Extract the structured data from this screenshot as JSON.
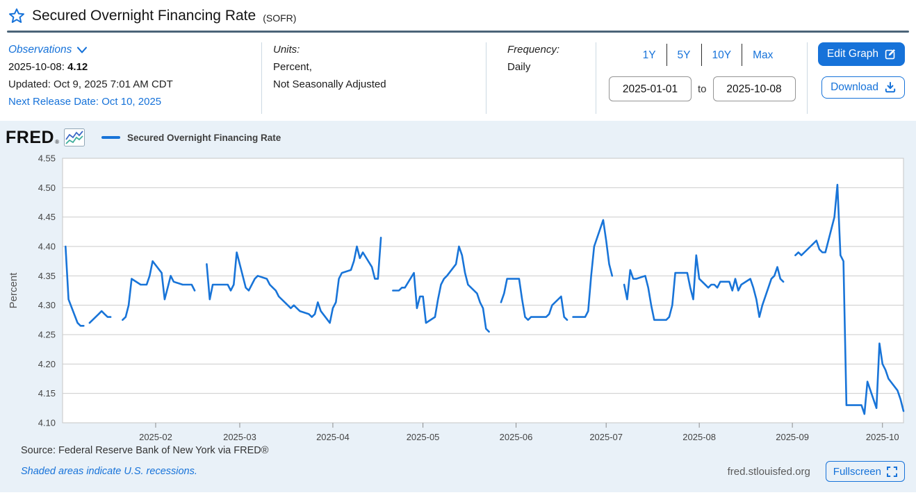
{
  "page": {
    "title": "Secured Overnight Financing Rate",
    "title_suffix": "(SOFR)"
  },
  "meta": {
    "observations_label": "Observations",
    "latest_date": "2025-10-08:",
    "latest_value": "4.12",
    "updated": "Updated: Oct 9, 2025 7:01 AM CDT",
    "next_release": "Next Release Date: Oct 10, 2025",
    "units_label": "Units:",
    "units_line1": "Percent,",
    "units_line2": "Not Seasonally Adjusted",
    "frequency_label": "Frequency:",
    "frequency_value": "Daily"
  },
  "range": {
    "buttons": [
      {
        "label": "1Y"
      },
      {
        "label": "5Y"
      },
      {
        "label": "10Y"
      },
      {
        "label": "Max"
      }
    ],
    "start_date": "2025-01-01",
    "to_label": "to",
    "end_date": "2025-10-08"
  },
  "actions": {
    "edit_graph": "Edit Graph",
    "download": "Download",
    "fullscreen": "Fullscreen"
  },
  "brand": {
    "logo": "FRED",
    "reg": "®"
  },
  "legend": {
    "series_label": "Secured Overnight Financing Rate"
  },
  "footer": {
    "source": "Source: Federal Reserve Bank of New York via FRED®",
    "note": "Shaded areas indicate U.S. recessions.",
    "domain": "fred.stlouisfed.org"
  },
  "colors": {
    "accent": "#1672d9",
    "line": "#1874d8",
    "chart_bg": "#e9f1f8",
    "grid": "#cbcbcb"
  },
  "chart_data": {
    "type": "line",
    "title": "Secured Overnight Financing Rate",
    "xlabel": "",
    "ylabel": "Percent",
    "ylim": [
      4.1,
      4.55
    ],
    "y_ticks": [
      4.1,
      4.15,
      4.2,
      4.25,
      4.3,
      4.35,
      4.4,
      4.45,
      4.5,
      4.55
    ],
    "x_range": [
      "2025-01-01",
      "2025-10-08"
    ],
    "x_ticks": [
      {
        "date": "2025-02-01",
        "label": "2025-02"
      },
      {
        "date": "2025-03-01",
        "label": "2025-03"
      },
      {
        "date": "2025-04-01",
        "label": "2025-04"
      },
      {
        "date": "2025-05-01",
        "label": "2025-05"
      },
      {
        "date": "2025-06-01",
        "label": "2025-06"
      },
      {
        "date": "2025-07-01",
        "label": "2025-07"
      },
      {
        "date": "2025-08-01",
        "label": "2025-08"
      },
      {
        "date": "2025-09-01",
        "label": "2025-09"
      },
      {
        "date": "2025-10-01",
        "label": "2025-10"
      }
    ],
    "grid": "horizontal",
    "legend_position": "top-left",
    "dates": [
      "2025-01-02",
      "2025-01-03",
      "2025-01-06",
      "2025-01-07",
      "2025-01-08",
      "2025-01-09",
      "2025-01-10",
      "2025-01-13",
      "2025-01-14",
      "2025-01-15",
      "2025-01-16",
      "2025-01-17",
      "2025-01-20",
      "2025-01-21",
      "2025-01-22",
      "2025-01-23",
      "2025-01-24",
      "2025-01-27",
      "2025-01-28",
      "2025-01-29",
      "2025-01-30",
      "2025-01-31",
      "2025-02-03",
      "2025-02-04",
      "2025-02-05",
      "2025-02-06",
      "2025-02-07",
      "2025-02-10",
      "2025-02-11",
      "2025-02-12",
      "2025-02-13",
      "2025-02-14",
      "2025-02-17",
      "2025-02-18",
      "2025-02-19",
      "2025-02-20",
      "2025-02-21",
      "2025-02-24",
      "2025-02-25",
      "2025-02-26",
      "2025-02-27",
      "2025-02-28",
      "2025-03-03",
      "2025-03-04",
      "2025-03-05",
      "2025-03-06",
      "2025-03-07",
      "2025-03-10",
      "2025-03-11",
      "2025-03-12",
      "2025-03-13",
      "2025-03-14",
      "2025-03-17",
      "2025-03-18",
      "2025-03-19",
      "2025-03-20",
      "2025-03-21",
      "2025-03-24",
      "2025-03-25",
      "2025-03-26",
      "2025-03-27",
      "2025-03-28",
      "2025-03-31",
      "2025-04-01",
      "2025-04-02",
      "2025-04-03",
      "2025-04-04",
      "2025-04-07",
      "2025-04-08",
      "2025-04-09",
      "2025-04-10",
      "2025-04-11",
      "2025-04-14",
      "2025-04-15",
      "2025-04-16",
      "2025-04-17",
      "2025-04-18",
      "2025-04-21",
      "2025-04-22",
      "2025-04-23",
      "2025-04-24",
      "2025-04-25",
      "2025-04-28",
      "2025-04-29",
      "2025-04-30",
      "2025-05-01",
      "2025-05-02",
      "2025-05-05",
      "2025-05-06",
      "2025-05-07",
      "2025-05-08",
      "2025-05-09",
      "2025-05-12",
      "2025-05-13",
      "2025-05-14",
      "2025-05-15",
      "2025-05-16",
      "2025-05-19",
      "2025-05-20",
      "2025-05-21",
      "2025-05-22",
      "2025-05-23",
      "2025-05-26",
      "2025-05-27",
      "2025-05-28",
      "2025-05-29",
      "2025-05-30",
      "2025-06-02",
      "2025-06-03",
      "2025-06-04",
      "2025-06-05",
      "2025-06-06",
      "2025-06-09",
      "2025-06-10",
      "2025-06-11",
      "2025-06-12",
      "2025-06-13",
      "2025-06-16",
      "2025-06-17",
      "2025-06-18",
      "2025-06-19",
      "2025-06-20",
      "2025-06-23",
      "2025-06-24",
      "2025-06-25",
      "2025-06-26",
      "2025-06-27",
      "2025-06-30",
      "2025-07-01",
      "2025-07-02",
      "2025-07-03",
      "2025-07-04",
      "2025-07-07",
      "2025-07-08",
      "2025-07-09",
      "2025-07-10",
      "2025-07-11",
      "2025-07-14",
      "2025-07-15",
      "2025-07-16",
      "2025-07-17",
      "2025-07-18",
      "2025-07-21",
      "2025-07-22",
      "2025-07-23",
      "2025-07-24",
      "2025-07-25",
      "2025-07-28",
      "2025-07-29",
      "2025-07-30",
      "2025-07-31",
      "2025-08-01",
      "2025-08-04",
      "2025-08-05",
      "2025-08-06",
      "2025-08-07",
      "2025-08-08",
      "2025-08-11",
      "2025-08-12",
      "2025-08-13",
      "2025-08-14",
      "2025-08-15",
      "2025-08-18",
      "2025-08-19",
      "2025-08-20",
      "2025-08-21",
      "2025-08-22",
      "2025-08-25",
      "2025-08-26",
      "2025-08-27",
      "2025-08-28",
      "2025-08-29",
      "2025-09-01",
      "2025-09-02",
      "2025-09-03",
      "2025-09-04",
      "2025-09-05",
      "2025-09-08",
      "2025-09-09",
      "2025-09-10",
      "2025-09-11",
      "2025-09-12",
      "2025-09-15",
      "2025-09-16",
      "2025-09-17",
      "2025-09-18",
      "2025-09-19",
      "2025-09-22",
      "2025-09-23",
      "2025-09-24",
      "2025-09-25",
      "2025-09-26",
      "2025-09-29",
      "2025-09-30",
      "2025-10-01",
      "2025-10-02",
      "2025-10-03",
      "2025-10-06",
      "2025-10-07",
      "2025-10-08"
    ],
    "values": [
      4.4,
      4.31,
      4.27,
      4.265,
      4.265,
      null,
      4.27,
      4.285,
      4.29,
      4.285,
      4.28,
      4.28,
      null,
      4.275,
      4.28,
      4.3,
      4.345,
      4.335,
      4.335,
      4.335,
      4.35,
      4.375,
      4.355,
      4.31,
      4.33,
      4.35,
      4.34,
      4.335,
      4.335,
      4.335,
      4.335,
      4.325,
      null,
      4.37,
      4.31,
      4.335,
      4.335,
      4.335,
      4.335,
      4.325,
      4.335,
      4.39,
      4.33,
      4.325,
      4.335,
      4.345,
      4.35,
      4.345,
      4.335,
      4.33,
      4.325,
      4.315,
      4.3,
      4.295,
      4.3,
      4.295,
      4.29,
      4.285,
      4.28,
      4.285,
      4.305,
      4.29,
      4.27,
      4.295,
      4.305,
      4.345,
      4.355,
      4.36,
      4.375,
      4.4,
      4.38,
      4.39,
      4.365,
      4.345,
      4.345,
      4.415,
      null,
      4.325,
      4.325,
      4.325,
      4.33,
      4.33,
      4.355,
      4.295,
      4.315,
      4.315,
      4.27,
      4.28,
      4.31,
      4.335,
      4.345,
      4.35,
      4.37,
      4.4,
      4.385,
      4.355,
      4.335,
      4.32,
      4.305,
      4.295,
      4.26,
      4.255,
      null,
      4.305,
      4.32,
      4.345,
      4.345,
      4.345,
      4.31,
      4.28,
      4.275,
      4.28,
      4.28,
      4.28,
      4.28,
      4.285,
      4.3,
      4.315,
      4.28,
      4.275,
      null,
      4.28,
      4.28,
      4.28,
      4.29,
      4.35,
      4.4,
      4.445,
      4.41,
      4.37,
      4.35,
      null,
      4.335,
      4.31,
      4.36,
      4.345,
      4.345,
      4.35,
      4.33,
      4.3,
      4.275,
      4.275,
      4.275,
      4.28,
      4.3,
      4.355,
      4.355,
      4.355,
      4.33,
      4.31,
      4.385,
      4.345,
      4.33,
      4.335,
      4.335,
      4.33,
      4.34,
      4.34,
      4.325,
      4.345,
      4.325,
      4.335,
      4.345,
      4.33,
      4.31,
      4.28,
      4.3,
      4.345,
      4.35,
      4.365,
      4.345,
      4.34,
      null,
      4.385,
      4.39,
      4.385,
      4.39,
      4.405,
      4.41,
      4.395,
      4.39,
      4.39,
      4.45,
      4.505,
      4.385,
      4.375,
      4.13,
      4.13,
      4.13,
      4.13,
      4.115,
      4.17,
      4.125,
      4.235,
      4.2,
      4.19,
      4.175,
      4.155,
      4.14,
      4.12
    ]
  }
}
